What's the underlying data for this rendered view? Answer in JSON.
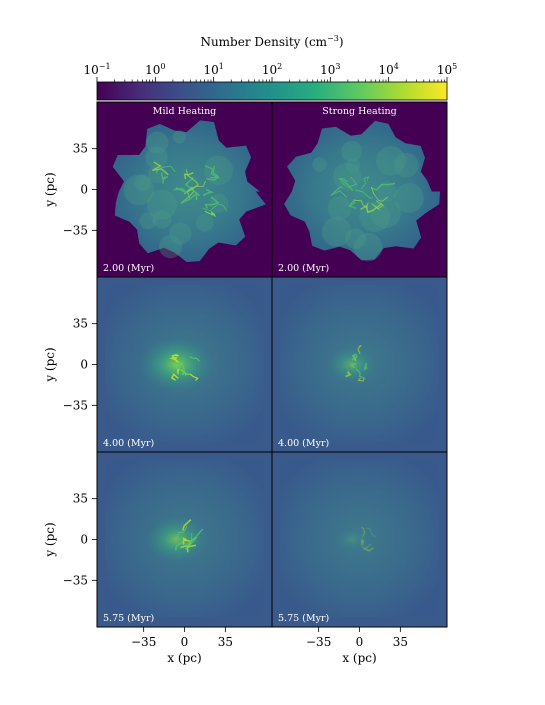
{
  "chart_data": {
    "type": "heatmap",
    "colorbar": {
      "label": "Number Density (cm",
      "label_exp": "−3",
      "label_close": ")",
      "scale": "log",
      "range": [
        0.1,
        100000
      ],
      "ticks": [
        {
          "base": "10",
          "exp": "−1"
        },
        {
          "base": "10",
          "exp": "0"
        },
        {
          "base": "10",
          "exp": "1"
        },
        {
          "base": "10",
          "exp": "2"
        },
        {
          "base": "10",
          "exp": "3"
        },
        {
          "base": "10",
          "exp": "4"
        },
        {
          "base": "10",
          "exp": "5"
        }
      ],
      "colormap_stops": [
        "#440154",
        "#472d7b",
        "#3b528b",
        "#2c728e",
        "#21918c",
        "#28ae80",
        "#5ec962",
        "#addc30",
        "#fde725"
      ]
    },
    "columns": [
      "Mild Heating",
      "Strong Heating"
    ],
    "rows": [
      {
        "time": "2.00 (Myr)",
        "background": "#440154"
      },
      {
        "time": "4.00 (Myr)",
        "background": "#3a5a8c"
      },
      {
        "time": "5.75 (Myr)",
        "background": "#3a5a8c"
      }
    ],
    "xlabel": "x (pc)",
    "ylabel": "y (pc)",
    "xticks": [
      "−35",
      "0",
      "35"
    ],
    "yticks": [
      "35",
      "0",
      "−35"
    ],
    "xtick_values": [
      -35,
      0,
      35
    ],
    "ytick_values": [
      35,
      0,
      -35
    ],
    "extent": [
      -75,
      75
    ]
  }
}
